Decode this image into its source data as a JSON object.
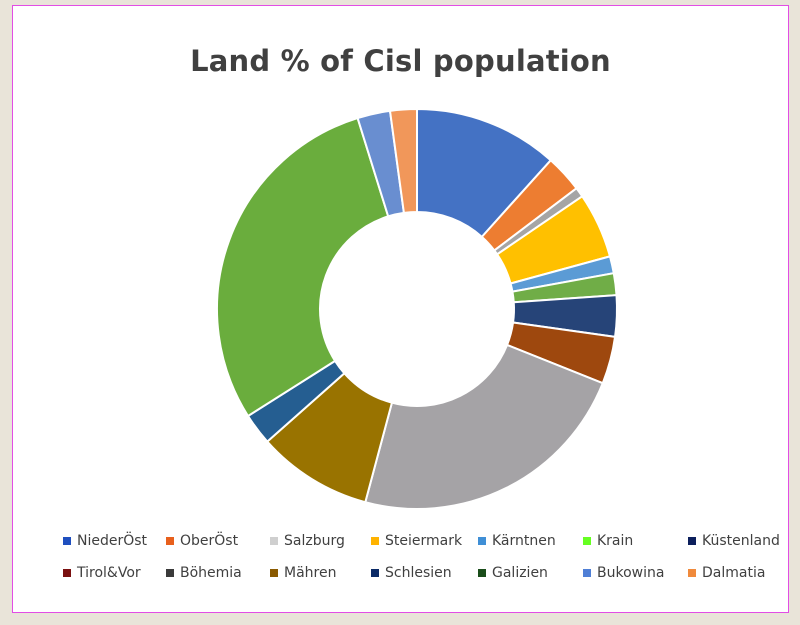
{
  "chart_data": {
    "type": "pie",
    "donut": true,
    "title": "Land % of Cisl population",
    "legend_position": "bottom",
    "categories": [
      "NiederÖst",
      "OberÖst",
      "Salzburg",
      "Steiermark",
      "Kärntnen",
      "Krain",
      "Küstenland",
      "Tirol&Vor",
      "Böhemia",
      "Mähren",
      "Schlesien",
      "Galizien",
      "Bukowina",
      "Dalmatia"
    ],
    "values": [
      11.9,
      3.1,
      0.8,
      5.4,
      1.4,
      1.8,
      3.4,
      3.9,
      23.6,
      9.5,
      2.6,
      29.8,
      2.7,
      2.2
    ],
    "colors": [
      "#4472c4",
      "#ed7d31",
      "#a5a5a5",
      "#ffc000",
      "#5b9bd5",
      "#70ad47",
      "#264478",
      "#9e480e",
      "#a5a3a6",
      "#997300",
      "#255e91",
      "#6aad3d",
      "#698ed0",
      "#f1975a"
    ],
    "legend_colors": [
      "#1f4fbf",
      "#e8601c",
      "#cfcfcf",
      "#ffb300",
      "#3f8fd6",
      "#66ff22",
      "#0c1f5c",
      "#7a1010",
      "#3a3a3a",
      "#8a5a00",
      "#0b2a66",
      "#1a4d1a",
      "#4f7fd6",
      "#f08a3c"
    ]
  }
}
